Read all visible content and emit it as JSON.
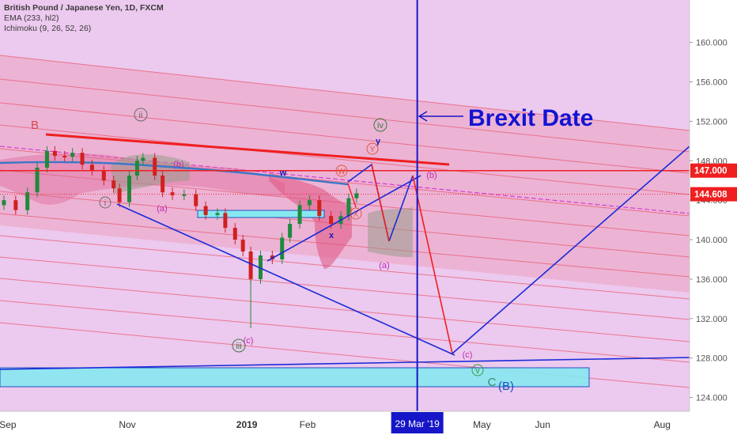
{
  "chart_data": {
    "type": "line",
    "title": "British Pound / Japanese Yen, 1D, FXCM",
    "indicators": [
      "EMA (233, hl2)",
      "Ichimoku (9, 26, 52, 26)"
    ],
    "x_ticks": [
      {
        "label": "Sep",
        "date": "2018-09-01",
        "bold": false
      },
      {
        "label": "Nov",
        "date": "2018-11-01",
        "bold": false
      },
      {
        "label": "2019",
        "date": "2019-01-01",
        "bold": true
      },
      {
        "label": "Feb",
        "date": "2019-02-01",
        "bold": false
      },
      {
        "label": "May",
        "date": "2019-05-01",
        "bold": false
      },
      {
        "label": "Jun",
        "date": "2019-06-01",
        "bold": false
      },
      {
        "label": "Aug",
        "date": "2019-08-01",
        "bold": false
      }
    ],
    "y_ticks": [
      "124.000",
      "128.000",
      "132.000",
      "136.000",
      "140.000",
      "144.000",
      "148.000",
      "152.000",
      "156.000",
      "160.000"
    ],
    "ylim": [
      122.6,
      164.3
    ],
    "x_range": [
      "2018-08-28",
      "2019-08-15"
    ],
    "price_labels": [
      {
        "text": "147.000",
        "value": 147.0,
        "color": "#ef1f1f"
      },
      {
        "text": "144.608",
        "value": 144.608,
        "color": "#ef1f1f"
      }
    ],
    "date_marker": {
      "text": "29 Mar '19",
      "date": "2019-03-29",
      "color": "#1616c8"
    },
    "price_series": [
      {
        "date": "2018-08-30",
        "value": 144.0
      },
      {
        "date": "2018-09-05",
        "value": 143.0
      },
      {
        "date": "2018-09-11",
        "value": 144.8
      },
      {
        "date": "2018-09-16",
        "value": 147.3
      },
      {
        "date": "2018-09-21",
        "value": 149.0
      },
      {
        "date": "2018-09-25",
        "value": 148.5
      },
      {
        "date": "2018-09-30",
        "value": 148.4
      },
      {
        "date": "2018-10-04",
        "value": 148.8
      },
      {
        "date": "2018-10-09",
        "value": 147.6
      },
      {
        "date": "2018-10-14",
        "value": 147.0
      },
      {
        "date": "2018-10-20",
        "value": 146.0
      },
      {
        "date": "2018-10-25",
        "value": 145.2
      },
      {
        "date": "2018-10-28",
        "value": 143.8
      },
      {
        "date": "2018-11-02",
        "value": 146.5
      },
      {
        "date": "2018-11-06",
        "value": 148.0
      },
      {
        "date": "2018-11-09",
        "value": 148.3
      },
      {
        "date": "2018-11-15",
        "value": 146.5
      },
      {
        "date": "2018-11-19",
        "value": 144.8
      },
      {
        "date": "2018-11-24",
        "value": 144.5
      },
      {
        "date": "2018-11-30",
        "value": 144.6
      },
      {
        "date": "2018-12-06",
        "value": 143.4
      },
      {
        "date": "2018-12-11",
        "value": 142.5
      },
      {
        "date": "2018-12-17",
        "value": 142.7
      },
      {
        "date": "2018-12-21",
        "value": 141.2
      },
      {
        "date": "2018-12-26",
        "value": 140.0
      },
      {
        "date": "2018-12-30",
        "value": 138.8
      },
      {
        "date": "2019-01-03",
        "value": 136.0
      },
      {
        "date": "2019-01-08",
        "value": 138.4
      },
      {
        "date": "2019-01-14",
        "value": 138.0
      },
      {
        "date": "2019-01-19",
        "value": 140.2
      },
      {
        "date": "2019-01-23",
        "value": 141.6
      },
      {
        "date": "2019-01-28",
        "value": 143.5
      },
      {
        "date": "2019-02-02",
        "value": 144.0
      },
      {
        "date": "2019-02-07",
        "value": 142.4
      },
      {
        "date": "2019-02-13",
        "value": 141.6
      },
      {
        "date": "2019-02-18",
        "value": 142.4
      },
      {
        "date": "2019-02-22",
        "value": 144.2
      },
      {
        "date": "2019-02-26",
        "value": 144.7
      }
    ],
    "annotations": [
      {
        "text": "Brexit Date",
        "color": "#1414d2"
      },
      {
        "text": "B",
        "color": "#d9484a"
      },
      {
        "text": "ii",
        "color": "#6a6a6a"
      },
      {
        "text": "i",
        "color": "#6a6a6a"
      },
      {
        "text": "iii",
        "color": "#3b7a3b"
      },
      {
        "text": "iv",
        "color": "#3b7a3b"
      },
      {
        "text": "v",
        "color": "#3b9a3b"
      },
      {
        "text": "C",
        "color": "#3b8a6b"
      },
      {
        "text": "(B)",
        "color": "#1a4fc0"
      },
      {
        "text": "(a)",
        "color": "#c02ab0"
      },
      {
        "text": "(b)",
        "color": "#c02ab0"
      },
      {
        "text": "(c)",
        "color": "#c02ab0"
      },
      {
        "text": "w",
        "color": "#1a1ab0"
      },
      {
        "text": "x",
        "color": "#1a1ab0"
      },
      {
        "text": "y",
        "color": "#1a1ab0"
      },
      {
        "text": "W",
        "color": "#e05a3a"
      },
      {
        "text": "X",
        "color": "#e05a3a"
      },
      {
        "text": "Y",
        "color": "#e05a3a"
      }
    ]
  }
}
